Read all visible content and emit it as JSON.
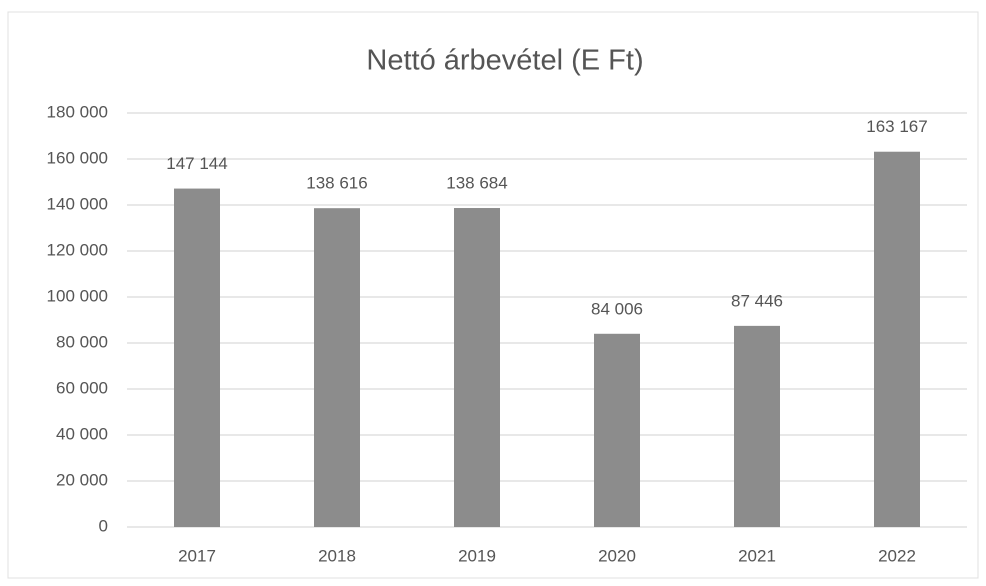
{
  "chart_data": {
    "type": "bar",
    "title": "Nettó árbevétel (E Ft)",
    "categories": [
      "2017",
      "2018",
      "2019",
      "2020",
      "2021",
      "2022"
    ],
    "values": [
      147144,
      138616,
      138684,
      84006,
      87446,
      163167
    ],
    "value_labels": [
      "147 144",
      "138 616",
      "138 684",
      "84 006",
      "87 446",
      "163 167"
    ],
    "color": "#8c8c8c",
    "ylim": [
      0,
      180000
    ],
    "yticks": [
      0,
      {
        "value": 20000,
        "label": "20 000"
      },
      {
        "value": 40000,
        "label": "40 000"
      },
      {
        "value": 60000,
        "label": "60 000"
      },
      {
        "value": 80000,
        "label": "80 000"
      },
      {
        "value": 100000,
        "label": "100 000"
      },
      {
        "value": 120000,
        "label": "120 000"
      },
      {
        "value": 140000,
        "label": "140 000"
      },
      {
        "value": 160000,
        "label": "160 000"
      },
      {
        "value": 180000,
        "label": "180 000"
      }
    ],
    "grid": true
  }
}
